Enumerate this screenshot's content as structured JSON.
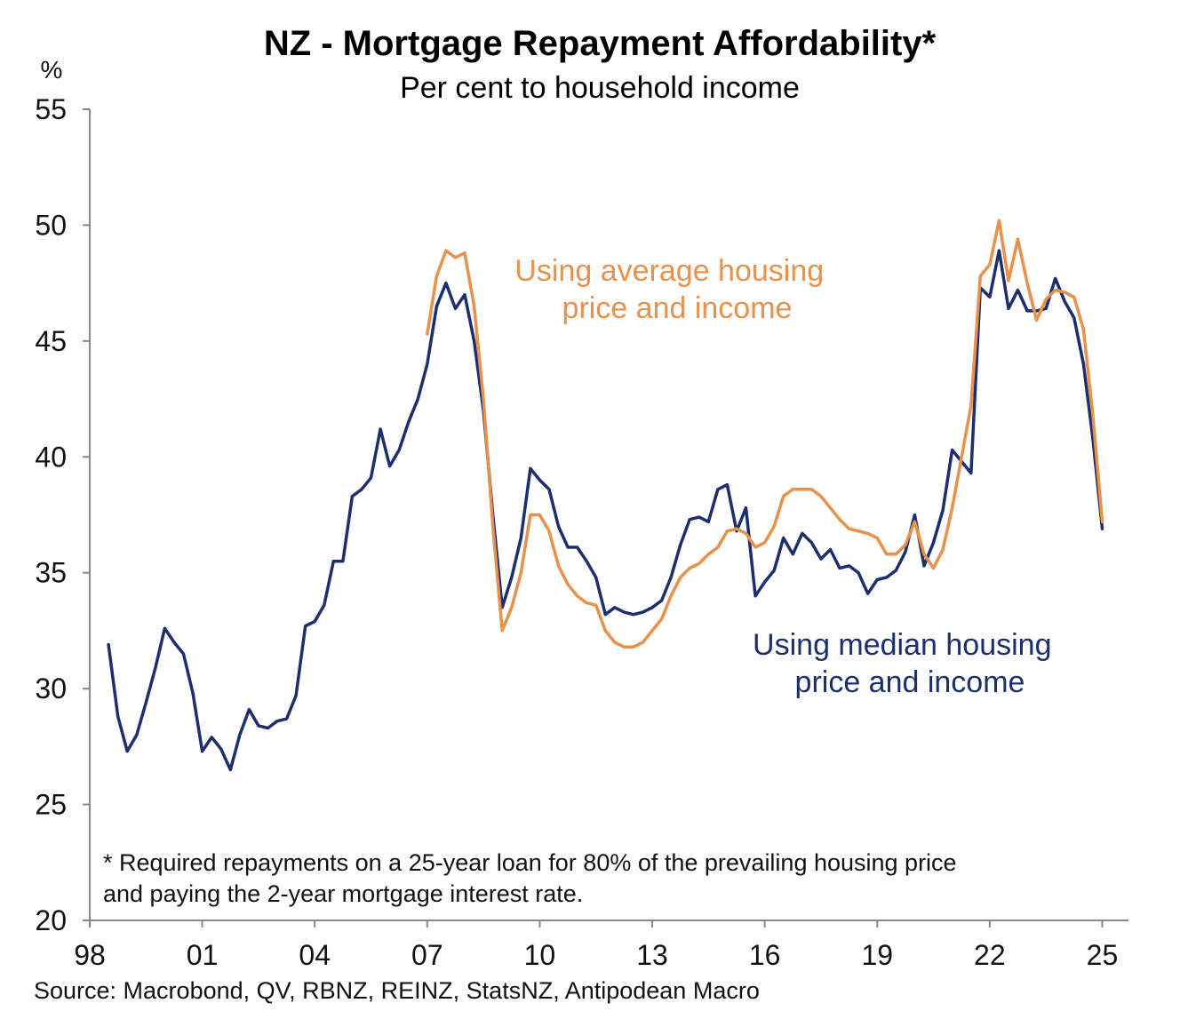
{
  "chart_data": {
    "type": "line",
    "title": "NZ - Mortgage Repayment Affordability*",
    "subtitle": "Per cent to household income",
    "ylabel": "%",
    "ylim": [
      20,
      55
    ],
    "yticks": [
      20,
      25,
      30,
      35,
      40,
      45,
      50,
      55
    ],
    "xlim": [
      1998,
      2025.7
    ],
    "xticks": [
      {
        "value": 1998,
        "label": "98"
      },
      {
        "value": 2001,
        "label": "01"
      },
      {
        "value": 2004,
        "label": "04"
      },
      {
        "value": 2007,
        "label": "07"
      },
      {
        "value": 2010,
        "label": "10"
      },
      {
        "value": 2013,
        "label": "13"
      },
      {
        "value": 2016,
        "label": "16"
      },
      {
        "value": 2019,
        "label": "19"
      },
      {
        "value": 2022,
        "label": "22"
      },
      {
        "value": 2025,
        "label": "25"
      }
    ],
    "series": [
      {
        "name": "Using median housing price and income",
        "color": "#1b2f6e",
        "label_lines": [
          "Using median housing",
          "price and income"
        ],
        "points": [
          [
            1998.5,
            31.9
          ],
          [
            1998.75,
            28.8
          ],
          [
            1999.0,
            27.3
          ],
          [
            1999.25,
            28.0
          ],
          [
            1999.5,
            29.4
          ],
          [
            1999.75,
            30.9
          ],
          [
            2000.0,
            32.6
          ],
          [
            2000.25,
            32.0
          ],
          [
            2000.5,
            31.5
          ],
          [
            2000.75,
            29.8
          ],
          [
            2001.0,
            27.3
          ],
          [
            2001.25,
            27.9
          ],
          [
            2001.5,
            27.4
          ],
          [
            2001.75,
            26.5
          ],
          [
            2002.0,
            28.0
          ],
          [
            2002.25,
            29.1
          ],
          [
            2002.5,
            28.4
          ],
          [
            2002.75,
            28.3
          ],
          [
            2003.0,
            28.6
          ],
          [
            2003.25,
            28.7
          ],
          [
            2003.5,
            29.7
          ],
          [
            2003.75,
            32.7
          ],
          [
            2004.0,
            32.9
          ],
          [
            2004.25,
            33.6
          ],
          [
            2004.5,
            35.5
          ],
          [
            2004.75,
            35.5
          ],
          [
            2005.0,
            38.3
          ],
          [
            2005.25,
            38.6
          ],
          [
            2005.5,
            39.1
          ],
          [
            2005.75,
            41.2
          ],
          [
            2006.0,
            39.6
          ],
          [
            2006.25,
            40.3
          ],
          [
            2006.5,
            41.5
          ],
          [
            2006.75,
            42.5
          ],
          [
            2007.0,
            44.0
          ],
          [
            2007.25,
            46.5
          ],
          [
            2007.5,
            47.5
          ],
          [
            2007.75,
            46.4
          ],
          [
            2008.0,
            47.0
          ],
          [
            2008.25,
            45.0
          ],
          [
            2008.5,
            42.0
          ],
          [
            2008.75,
            37.5
          ],
          [
            2009.0,
            33.5
          ],
          [
            2009.25,
            34.8
          ],
          [
            2009.5,
            36.5
          ],
          [
            2009.75,
            39.5
          ],
          [
            2010.0,
            39.0
          ],
          [
            2010.25,
            38.6
          ],
          [
            2010.5,
            37.0
          ],
          [
            2010.75,
            36.1
          ],
          [
            2011.0,
            36.1
          ],
          [
            2011.25,
            35.5
          ],
          [
            2011.5,
            34.8
          ],
          [
            2011.75,
            33.2
          ],
          [
            2012.0,
            33.5
          ],
          [
            2012.25,
            33.3
          ],
          [
            2012.5,
            33.2
          ],
          [
            2012.75,
            33.3
          ],
          [
            2013.0,
            33.5
          ],
          [
            2013.25,
            33.8
          ],
          [
            2013.5,
            34.8
          ],
          [
            2013.75,
            36.2
          ],
          [
            2014.0,
            37.3
          ],
          [
            2014.25,
            37.4
          ],
          [
            2014.5,
            37.2
          ],
          [
            2014.75,
            38.6
          ],
          [
            2015.0,
            38.8
          ],
          [
            2015.25,
            36.8
          ],
          [
            2015.5,
            37.8
          ],
          [
            2015.75,
            34.0
          ],
          [
            2016.0,
            34.6
          ],
          [
            2016.25,
            35.1
          ],
          [
            2016.5,
            36.5
          ],
          [
            2016.75,
            35.8
          ],
          [
            2017.0,
            36.7
          ],
          [
            2017.25,
            36.3
          ],
          [
            2017.5,
            35.6
          ],
          [
            2017.75,
            36.0
          ],
          [
            2018.0,
            35.2
          ],
          [
            2018.25,
            35.3
          ],
          [
            2018.5,
            35.0
          ],
          [
            2018.75,
            34.1
          ],
          [
            2019.0,
            34.7
          ],
          [
            2019.25,
            34.8
          ],
          [
            2019.5,
            35.1
          ],
          [
            2019.75,
            35.9
          ],
          [
            2020.0,
            37.5
          ],
          [
            2020.25,
            35.3
          ],
          [
            2020.5,
            36.3
          ],
          [
            2020.75,
            37.7
          ],
          [
            2021.0,
            40.3
          ],
          [
            2021.25,
            39.8
          ],
          [
            2021.5,
            39.3
          ],
          [
            2021.75,
            47.3
          ],
          [
            2022.0,
            46.9
          ],
          [
            2022.25,
            48.9
          ],
          [
            2022.5,
            46.4
          ],
          [
            2022.75,
            47.2
          ],
          [
            2023.0,
            46.3
          ],
          [
            2023.25,
            46.3
          ],
          [
            2023.5,
            46.4
          ],
          [
            2023.75,
            47.7
          ],
          [
            2024.0,
            46.7
          ],
          [
            2024.25,
            46.0
          ],
          [
            2024.5,
            44.0
          ],
          [
            2024.75,
            40.8
          ],
          [
            2025.0,
            36.9
          ]
        ]
      },
      {
        "name": "Using average housing price and income",
        "color": "#e8914a",
        "label_lines": [
          "Using average housing",
          "price and income"
        ],
        "points": [
          [
            2007.0,
            45.3
          ],
          [
            2007.25,
            47.8
          ],
          [
            2007.5,
            48.9
          ],
          [
            2007.75,
            48.6
          ],
          [
            2008.0,
            48.8
          ],
          [
            2008.25,
            46.5
          ],
          [
            2008.5,
            42.5
          ],
          [
            2008.75,
            37.0
          ],
          [
            2009.0,
            32.5
          ],
          [
            2009.25,
            33.5
          ],
          [
            2009.5,
            35.0
          ],
          [
            2009.75,
            37.5
          ],
          [
            2010.0,
            37.5
          ],
          [
            2010.25,
            36.8
          ],
          [
            2010.5,
            35.3
          ],
          [
            2010.75,
            34.5
          ],
          [
            2011.0,
            34.0
          ],
          [
            2011.25,
            33.7
          ],
          [
            2011.5,
            33.6
          ],
          [
            2011.75,
            32.5
          ],
          [
            2012.0,
            32.0
          ],
          [
            2012.25,
            31.8
          ],
          [
            2012.5,
            31.8
          ],
          [
            2012.75,
            32.0
          ],
          [
            2013.0,
            32.5
          ],
          [
            2013.25,
            33.0
          ],
          [
            2013.5,
            34.0
          ],
          [
            2013.75,
            34.8
          ],
          [
            2014.0,
            35.2
          ],
          [
            2014.25,
            35.4
          ],
          [
            2014.5,
            35.8
          ],
          [
            2014.75,
            36.1
          ],
          [
            2015.0,
            36.8
          ],
          [
            2015.25,
            36.9
          ],
          [
            2015.5,
            36.7
          ],
          [
            2015.75,
            36.1
          ],
          [
            2016.0,
            36.3
          ],
          [
            2016.25,
            37.0
          ],
          [
            2016.5,
            38.3
          ],
          [
            2016.75,
            38.6
          ],
          [
            2017.0,
            38.6
          ],
          [
            2017.25,
            38.6
          ],
          [
            2017.5,
            38.3
          ],
          [
            2017.75,
            37.8
          ],
          [
            2018.0,
            37.3
          ],
          [
            2018.25,
            36.9
          ],
          [
            2018.5,
            36.8
          ],
          [
            2018.75,
            36.7
          ],
          [
            2019.0,
            36.5
          ],
          [
            2019.25,
            35.8
          ],
          [
            2019.5,
            35.8
          ],
          [
            2019.75,
            36.2
          ],
          [
            2020.0,
            37.2
          ],
          [
            2020.25,
            35.8
          ],
          [
            2020.5,
            35.2
          ],
          [
            2020.75,
            36.0
          ],
          [
            2021.0,
            37.8
          ],
          [
            2021.25,
            40.0
          ],
          [
            2021.5,
            42.2
          ],
          [
            2021.75,
            47.8
          ],
          [
            2022.0,
            48.3
          ],
          [
            2022.25,
            50.2
          ],
          [
            2022.5,
            47.6
          ],
          [
            2022.75,
            49.4
          ],
          [
            2023.0,
            47.5
          ],
          [
            2023.25,
            45.9
          ],
          [
            2023.5,
            46.8
          ],
          [
            2023.75,
            47.2
          ],
          [
            2024.0,
            47.1
          ],
          [
            2024.25,
            46.9
          ],
          [
            2024.5,
            45.5
          ],
          [
            2024.75,
            41.8
          ],
          [
            2025.0,
            37.2
          ]
        ]
      }
    ],
    "footnote_lines": [
      "* Required repayments on a 25-year loan for 80% of the prevailing housing price",
      "and paying the 2-year mortgage interest rate."
    ],
    "source": "Source: Macrobond, QV, RBNZ, REINZ, StatsNZ, Antipodean Macro"
  }
}
